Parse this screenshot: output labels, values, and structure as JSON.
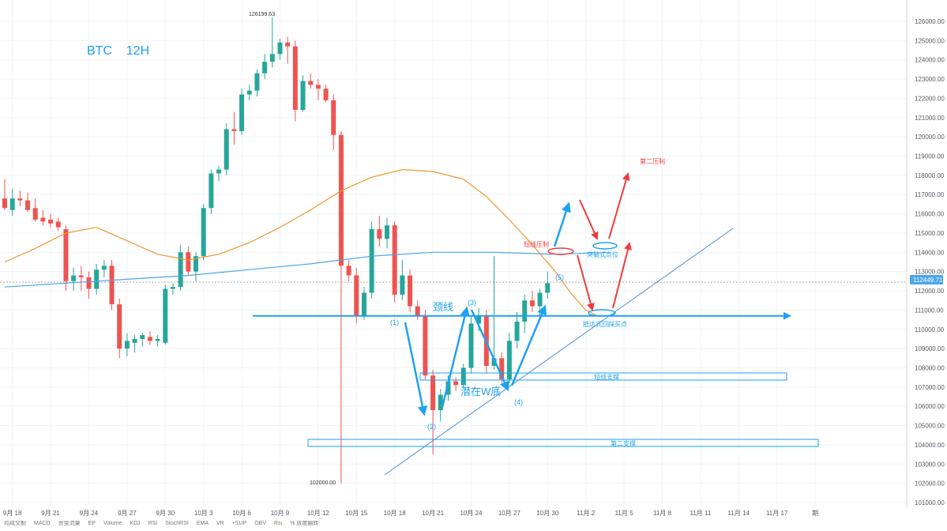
{
  "title": "BTC    12H",
  "price_marker": "112449.71",
  "colors": {
    "up": "#26a69a",
    "down": "#ef5350",
    "ma_fast": "#f0962e",
    "ma_slow": "#4aa6e8",
    "annotation_blue": "#1ea1f2",
    "annotation_red": "#ef3b3b",
    "grid": "#f0f3fa"
  },
  "chart_data": {
    "type": "candlestick",
    "title": "BTC    12H",
    "xlabel": "",
    "ylabel": "",
    "ylim": [
      101000,
      127000
    ],
    "y_ticks": [
      101000,
      102000,
      103000,
      104000,
      105000,
      106000,
      107000,
      108000,
      109000,
      110000,
      111000,
      112000,
      113000,
      114000,
      115000,
      116000,
      117000,
      118000,
      119000,
      120000,
      121000,
      122000,
      123000,
      124000,
      125000,
      126000
    ],
    "x_ticks": [
      {
        "label": "9月 18",
        "i": 1
      },
      {
        "label": "9月 21",
        "i": 6
      },
      {
        "label": "9月 24",
        "i": 11
      },
      {
        "label": "9月 27",
        "i": 16
      },
      {
        "label": "9月 30",
        "i": 21
      },
      {
        "label": "10月 3",
        "i": 26
      },
      {
        "label": "10月 6",
        "i": 31
      },
      {
        "label": "10月 9",
        "i": 36
      },
      {
        "label": "10月 12",
        "i": 41
      },
      {
        "label": "10月 15",
        "i": 46
      },
      {
        "label": "10月 18",
        "i": 51
      },
      {
        "label": "10月 21",
        "i": 56
      },
      {
        "label": "10月 24",
        "i": 61
      },
      {
        "label": "10月 27",
        "i": 66
      },
      {
        "label": "10月 30",
        "i": 71
      },
      {
        "label": "11月 2",
        "i": 76
      },
      {
        "label": "11月 5",
        "i": 81
      },
      {
        "label": "11月 8",
        "i": 86
      },
      {
        "label": "11月 11",
        "i": 91
      },
      {
        "label": "11月 14",
        "i": 96
      },
      {
        "label": "11月 17",
        "i": 101
      },
      {
        "label": "期",
        "i": 106
      }
    ],
    "candles": [
      {
        "o": 116800,
        "h": 117800,
        "l": 116200,
        "c": 116300
      },
      {
        "o": 116200,
        "h": 117300,
        "l": 115900,
        "c": 116800
      },
      {
        "o": 116800,
        "h": 117200,
        "l": 116400,
        "c": 116700
      },
      {
        "o": 116700,
        "h": 117100,
        "l": 116100,
        "c": 116200
      },
      {
        "o": 116300,
        "h": 116800,
        "l": 115600,
        "c": 115700
      },
      {
        "o": 115800,
        "h": 116200,
        "l": 115400,
        "c": 115600
      },
      {
        "o": 115700,
        "h": 116000,
        "l": 115300,
        "c": 115500
      },
      {
        "o": 115600,
        "h": 115800,
        "l": 115100,
        "c": 115300
      },
      {
        "o": 115200,
        "h": 115400,
        "l": 112000,
        "c": 112500
      },
      {
        "o": 112500,
        "h": 113200,
        "l": 112000,
        "c": 112800
      },
      {
        "o": 112800,
        "h": 113300,
        "l": 112000,
        "c": 112700
      },
      {
        "o": 112700,
        "h": 113000,
        "l": 111600,
        "c": 112100
      },
      {
        "o": 112100,
        "h": 113400,
        "l": 111800,
        "c": 113100
      },
      {
        "o": 113100,
        "h": 113600,
        "l": 112700,
        "c": 113300
      },
      {
        "o": 113300,
        "h": 113600,
        "l": 111000,
        "c": 111300
      },
      {
        "o": 111300,
        "h": 111600,
        "l": 108500,
        "c": 109000
      },
      {
        "o": 109000,
        "h": 109800,
        "l": 108600,
        "c": 109400
      },
      {
        "o": 109300,
        "h": 109700,
        "l": 108800,
        "c": 109500
      },
      {
        "o": 109500,
        "h": 109800,
        "l": 109100,
        "c": 109700
      },
      {
        "o": 109600,
        "h": 109900,
        "l": 109200,
        "c": 109400
      },
      {
        "o": 109400,
        "h": 109700,
        "l": 109100,
        "c": 109500
      },
      {
        "o": 109300,
        "h": 112300,
        "l": 109200,
        "c": 112100
      },
      {
        "o": 112100,
        "h": 112400,
        "l": 111800,
        "c": 112200
      },
      {
        "o": 112200,
        "h": 114400,
        "l": 112000,
        "c": 114000
      },
      {
        "o": 114000,
        "h": 114300,
        "l": 112800,
        "c": 113000
      },
      {
        "o": 113000,
        "h": 114000,
        "l": 112500,
        "c": 113800
      },
      {
        "o": 113800,
        "h": 116500,
        "l": 113600,
        "c": 116300
      },
      {
        "o": 116300,
        "h": 118300,
        "l": 116000,
        "c": 118100
      },
      {
        "o": 118100,
        "h": 118500,
        "l": 117700,
        "c": 118300
      },
      {
        "o": 118300,
        "h": 120700,
        "l": 118000,
        "c": 120400
      },
      {
        "o": 120400,
        "h": 121300,
        "l": 119600,
        "c": 120300
      },
      {
        "o": 120300,
        "h": 122500,
        "l": 120100,
        "c": 122200
      },
      {
        "o": 122200,
        "h": 122700,
        "l": 121900,
        "c": 122400
      },
      {
        "o": 122400,
        "h": 123500,
        "l": 122100,
        "c": 123300
      },
      {
        "o": 123300,
        "h": 124300,
        "l": 123000,
        "c": 123900
      },
      {
        "o": 123900,
        "h": 126199.63,
        "l": 123600,
        "c": 124300
      },
      {
        "o": 124300,
        "h": 125100,
        "l": 124000,
        "c": 124900
      },
      {
        "o": 124900,
        "h": 125200,
        "l": 123800,
        "c": 124700
      },
      {
        "o": 124700,
        "h": 125000,
        "l": 120800,
        "c": 121400
      },
      {
        "o": 121400,
        "h": 123200,
        "l": 121300,
        "c": 122900
      },
      {
        "o": 122900,
        "h": 123300,
        "l": 122500,
        "c": 122700
      },
      {
        "o": 122700,
        "h": 123000,
        "l": 121900,
        "c": 122500
      },
      {
        "o": 122500,
        "h": 122700,
        "l": 121800,
        "c": 121900
      },
      {
        "o": 121900,
        "h": 122200,
        "l": 119300,
        "c": 120100
      },
      {
        "o": 120100,
        "h": 120300,
        "l": 102000,
        "c": 113300
      },
      {
        "o": 113300,
        "h": 113600,
        "l": 112500,
        "c": 112800
      },
      {
        "o": 112800,
        "h": 113200,
        "l": 110300,
        "c": 110700
      },
      {
        "o": 110700,
        "h": 112200,
        "l": 110500,
        "c": 111900
      },
      {
        "o": 111900,
        "h": 115600,
        "l": 111600,
        "c": 115200
      },
      {
        "o": 115200,
        "h": 115900,
        "l": 114300,
        "c": 114700
      },
      {
        "o": 114700,
        "h": 115800,
        "l": 114200,
        "c": 115400
      },
      {
        "o": 115400,
        "h": 115600,
        "l": 111400,
        "c": 111800
      },
      {
        "o": 111800,
        "h": 113600,
        "l": 111500,
        "c": 112800
      },
      {
        "o": 112800,
        "h": 113100,
        "l": 110900,
        "c": 111200
      },
      {
        "o": 111200,
        "h": 111500,
        "l": 110500,
        "c": 110700
      },
      {
        "o": 110700,
        "h": 111000,
        "l": 107400,
        "c": 107600
      },
      {
        "o": 107600,
        "h": 107900,
        "l": 103500,
        "c": 105800
      },
      {
        "o": 105800,
        "h": 106900,
        "l": 105200,
        "c": 106600
      },
      {
        "o": 106600,
        "h": 107600,
        "l": 106300,
        "c": 107300
      },
      {
        "o": 107300,
        "h": 107500,
        "l": 106800,
        "c": 107100
      },
      {
        "o": 107100,
        "h": 108200,
        "l": 106900,
        "c": 108000
      },
      {
        "o": 108000,
        "h": 110700,
        "l": 107700,
        "c": 110300
      },
      {
        "o": 110300,
        "h": 111100,
        "l": 109900,
        "c": 110700
      },
      {
        "o": 110700,
        "h": 111000,
        "l": 107700,
        "c": 108100
      },
      {
        "o": 108100,
        "h": 113800,
        "l": 107900,
        "c": 108500
      },
      {
        "o": 108500,
        "h": 108800,
        "l": 107100,
        "c": 107400
      },
      {
        "o": 107400,
        "h": 109800,
        "l": 107200,
        "c": 109400
      },
      {
        "o": 109400,
        "h": 110900,
        "l": 109000,
        "c": 110400
      },
      {
        "o": 110400,
        "h": 111800,
        "l": 109800,
        "c": 111500
      },
      {
        "o": 111500,
        "h": 112000,
        "l": 110900,
        "c": 111200
      },
      {
        "o": 111200,
        "h": 112100,
        "l": 110600,
        "c": 111900
      },
      {
        "o": 111900,
        "h": 113000,
        "l": 111600,
        "c": 112400
      }
    ],
    "series": [
      {
        "name": "",
        "color": "#f0962e",
        "points": [
          [
            0,
            113500
          ],
          [
            4,
            114200
          ],
          [
            8,
            115000
          ],
          [
            12,
            115300
          ],
          [
            16,
            114600
          ],
          [
            20,
            113900
          ],
          [
            24,
            113600
          ],
          [
            28,
            113900
          ],
          [
            32,
            114500
          ],
          [
            36,
            115300
          ],
          [
            40,
            116200
          ],
          [
            44,
            117200
          ],
          [
            48,
            117900
          ],
          [
            52,
            118300
          ],
          [
            56,
            118200
          ],
          [
            60,
            117800
          ],
          [
            63,
            116900
          ],
          [
            66,
            115700
          ],
          [
            69,
            114400
          ],
          [
            72,
            113000
          ],
          [
            74,
            111900
          ],
          [
            76,
            111000
          ],
          [
            77.5,
            110700
          ],
          [
            79,
            110700
          ]
        ]
      },
      {
        "name": "",
        "color": "#4aa6e8",
        "points": [
          [
            0,
            112200
          ],
          [
            8,
            112400
          ],
          [
            16,
            112600
          ],
          [
            24,
            112800
          ],
          [
            32,
            113100
          ],
          [
            40,
            113400
          ],
          [
            48,
            113800
          ],
          [
            56,
            114000
          ],
          [
            64,
            114000
          ],
          [
            72,
            113900
          ],
          [
            79,
            114000
          ]
        ]
      }
    ],
    "high_label": "126199.63",
    "low_label": "102000.00"
  },
  "annotations": {
    "neckline": "颈线",
    "pattern": "潜在W底",
    "short_resistance": "短线压制",
    "second_resistance": "第二压制",
    "breakout_point": "突破式点位",
    "pullback_buy": "抵达式回踩买点",
    "short_support": "短线支撑",
    "second_support": "第二支撑",
    "wave_labels": [
      "(1)",
      "(2)",
      "(3)",
      "(4)",
      "(5)"
    ]
  },
  "bottom_bar": [
    "均成交额",
    "MACD",
    "资金流量",
    "EP",
    "Volume",
    "KDJ",
    "RSI",
    "StochRSI",
    "EMA",
    "VR",
    "+SUP",
    "OBV",
    "Rsi",
    "% 放度翻转"
  ]
}
